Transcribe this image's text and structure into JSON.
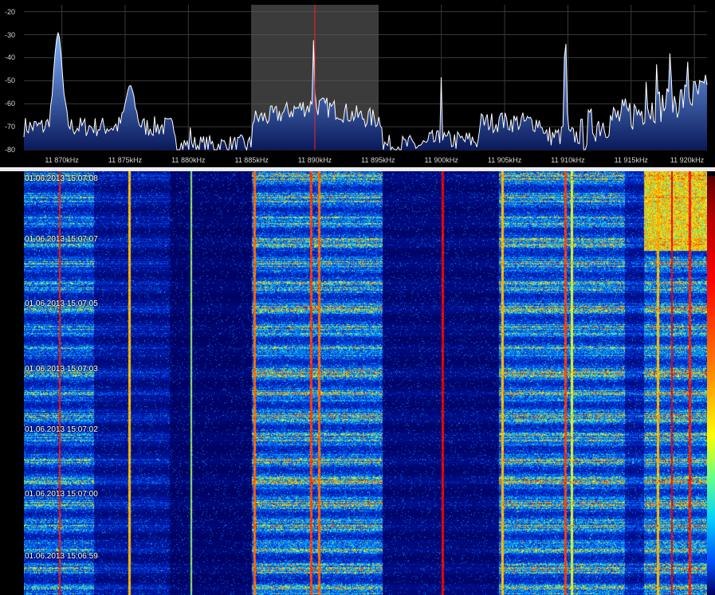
{
  "spectrum": {
    "db_axis": {
      "min": -80,
      "max": -17,
      "ticks": [
        "-20",
        "-30",
        "-40",
        "-50",
        "-60",
        "-70",
        "-80"
      ],
      "tick_values": [
        -20,
        -30,
        -40,
        -50,
        -60,
        -70,
        -80
      ]
    },
    "freq_axis": {
      "min_khz": 11867,
      "max_khz": 11921,
      "ticks": [
        "11 870kHz",
        "11 875kHz",
        "11 880kHz",
        "11 885kHz",
        "11 890kHz",
        "11 895kHz",
        "11 900kHz",
        "11 905kHz",
        "11 910kHz",
        "11 915kHz",
        "11 920kHz"
      ],
      "tick_values": [
        11870,
        11875,
        11880,
        11885,
        11890,
        11895,
        11900,
        11905,
        11910,
        11915,
        11920
      ]
    },
    "selection": {
      "from_khz": 11885,
      "to_khz": 11895
    },
    "tuned_khz": 11890,
    "colors": {
      "background": "#000000",
      "grid": "#3a3a3a",
      "trace": "#ffffff",
      "fill_top": "#7fb3ff",
      "fill_bottom": "#0a1a5c",
      "selection": "#5a5a5a",
      "marker": "#ff2020"
    }
  },
  "waterfall": {
    "timestamps": [
      "01.06.2013 15:07:08",
      "01.06.2013 15:07:07",
      "01.06.2013 15:07:05",
      "01.06.2013 15:07:03",
      "01.06.2013 15:07:02",
      "01.06.2013 15:07:00",
      "01.06.2013 15:06:59"
    ],
    "palette": [
      "#00005a",
      "#0020c0",
      "#0070ff",
      "#00d0ff",
      "#ffff00",
      "#ff8000",
      "#ff0000",
      "#a00000"
    ]
  }
}
